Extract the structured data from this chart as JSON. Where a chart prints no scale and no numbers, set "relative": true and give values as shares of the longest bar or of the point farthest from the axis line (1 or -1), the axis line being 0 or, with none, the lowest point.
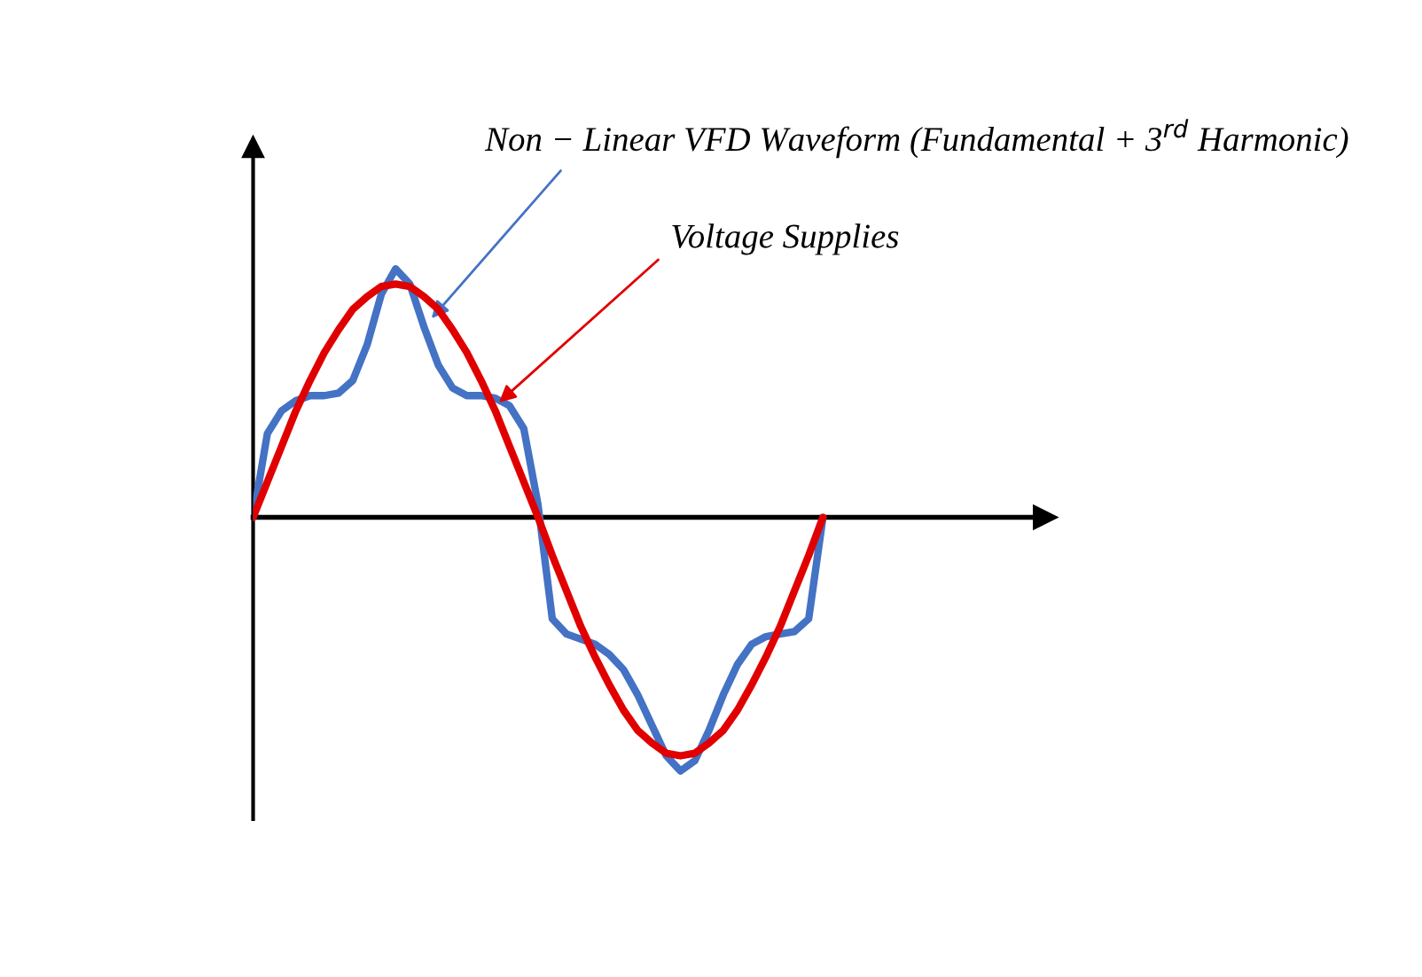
{
  "chart_data": {
    "type": "line",
    "relative": true,
    "legend": false,
    "marker": "none",
    "line_style": "solid",
    "categories": [
      null,
      null,
      null,
      null,
      null,
      null,
      null,
      null,
      null,
      null,
      null,
      null,
      null,
      null,
      null,
      null,
      null,
      null,
      null,
      null,
      null,
      null,
      null,
      null,
      null,
      null,
      null,
      null,
      null,
      null,
      null,
      null,
      null,
      null,
      null,
      null,
      null,
      null,
      null,
      null,
      null
    ],
    "series": [
      {
        "name": "Non − Linear VFD Waveform (Fundamental + 3$^{rd}$ Harmonic)",
        "color": "#4472c4",
        "values": [
          0,
          0.33,
          0.42,
          0.46,
          0.48,
          0.48,
          0.49,
          0.54,
          0.68,
          0.88,
          0.98,
          0.92,
          0.75,
          0.6,
          0.51,
          0.48,
          0.48,
          0.47,
          0.44,
          0.35,
          0.05,
          -0.4,
          -0.46,
          -0.48,
          -0.5,
          -0.54,
          -0.6,
          -0.7,
          -0.82,
          -0.94,
          -1,
          -0.96,
          -0.84,
          -0.7,
          -0.58,
          -0.5,
          -0.47,
          -0.46,
          -0.45,
          -0.4,
          0
        ]
      },
      {
        "name": "Voltage Supplies",
        "color": "#e00000",
        "values": [
          0,
          0.14,
          0.28,
          0.42,
          0.54,
          0.65,
          0.74,
          0.82,
          0.87,
          0.91,
          0.92,
          0.91,
          0.87,
          0.82,
          0.74,
          0.65,
          0.54,
          0.42,
          0.28,
          0.14,
          0,
          -0.15,
          -0.29,
          -0.43,
          -0.55,
          -0.66,
          -0.76,
          -0.84,
          -0.89,
          -0.93,
          -0.94,
          -0.93,
          -0.89,
          -0.84,
          -0.76,
          -0.66,
          -0.55,
          -0.43,
          -0.29,
          -0.15,
          0
        ]
      }
    ]
  }
}
